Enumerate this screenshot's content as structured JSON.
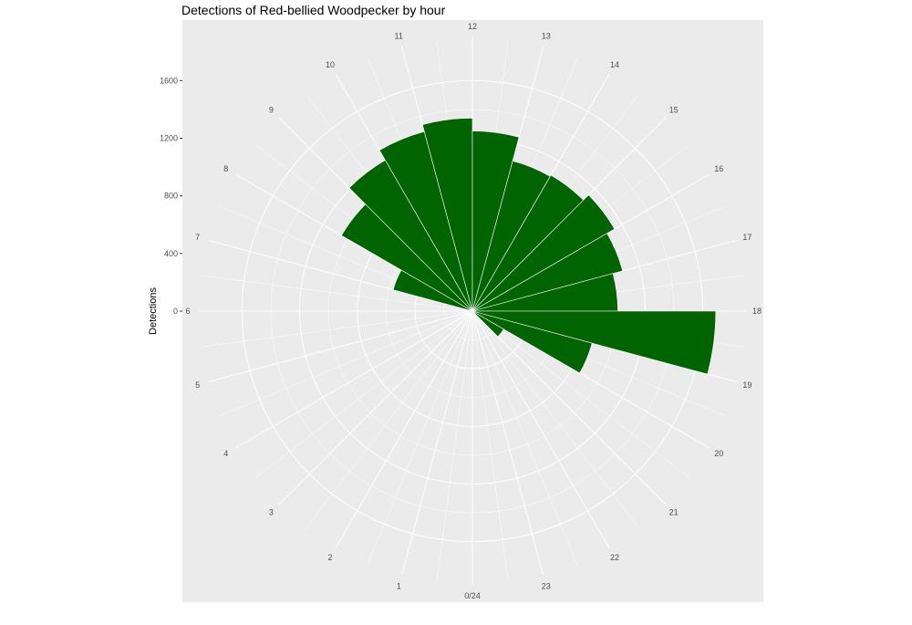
{
  "chart_data": {
    "type": "bar",
    "coord": "polar",
    "title": "Detections of Red-bellied Woodpecker by hour",
    "ylabel": "Detections",
    "xlabel": "",
    "categories": [
      "0",
      "1",
      "2",
      "3",
      "4",
      "5",
      "6",
      "7",
      "8",
      "9",
      "10",
      "11",
      "12",
      "13",
      "14",
      "15",
      "16",
      "17",
      "18",
      "19",
      "20",
      "21",
      "22",
      "23"
    ],
    "hour_labels": [
      "0/24",
      "1",
      "2",
      "3",
      "4",
      "5",
      "6",
      "7",
      "8",
      "9",
      "10",
      "11",
      "12",
      "13",
      "14",
      "15",
      "16",
      "17",
      "18",
      "19",
      "20",
      "21",
      "22",
      "23"
    ],
    "values": [
      0,
      0,
      0,
      0,
      0,
      0,
      10,
      570,
      1050,
      1210,
      1290,
      1340,
      1250,
      1080,
      1090,
      1140,
      1080,
      1010,
      1690,
      860,
      250,
      0,
      0,
      0
    ],
    "y_ticks": [
      0,
      400,
      800,
      1200,
      1600
    ],
    "ylim": [
      0,
      1900
    ],
    "grid": true,
    "legend": "none",
    "bar_color": "#006400",
    "panel_color": "#ebebeb",
    "grid_color": "#ffffff"
  }
}
